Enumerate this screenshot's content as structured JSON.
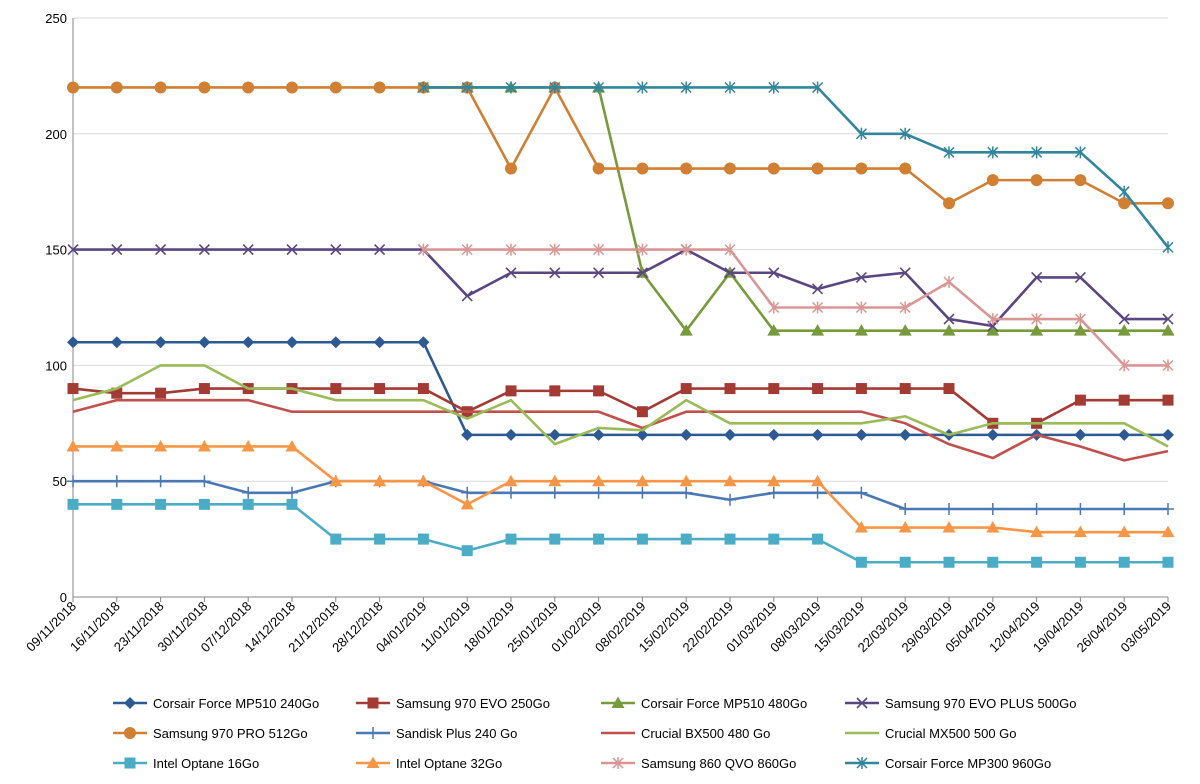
{
  "chart_data": {
    "type": "line",
    "title": "",
    "xlabel": "",
    "ylabel": "",
    "ylim": [
      0,
      250
    ],
    "yticks": [
      0,
      50,
      100,
      150,
      200,
      250
    ],
    "grid": "horizontal",
    "legend_position": "bottom",
    "x": [
      "09/11/2018",
      "16/11/2018",
      "23/11/2018",
      "30/11/2018",
      "07/12/2018",
      "14/12/2018",
      "21/12/2018",
      "28/12/2018",
      "04/01/2019",
      "11/01/2019",
      "18/01/2019",
      "25/01/2019",
      "01/02/2019",
      "08/02/2019",
      "15/02/2019",
      "22/02/2019",
      "01/03/2019",
      "08/03/2019",
      "15/03/2019",
      "22/03/2019",
      "29/03/2019",
      "05/04/2019",
      "12/04/2019",
      "19/04/2019",
      "26/04/2019",
      "03/05/2019"
    ],
    "series": [
      {
        "name": "Corsair Force MP510 240Go",
        "color": "#2e5a94",
        "marker": "diamond",
        "values": [
          110,
          110,
          110,
          110,
          110,
          110,
          110,
          110,
          110,
          70,
          70,
          70,
          70,
          70,
          70,
          70,
          70,
          70,
          70,
          70,
          70,
          70,
          70,
          70,
          70,
          70
        ]
      },
      {
        "name": "Samsung 970 EVO 250Go",
        "color": "#a33a34",
        "marker": "square",
        "values": [
          90,
          88,
          88,
          90,
          90,
          90,
          90,
          90,
          90,
          80,
          89,
          89,
          89,
          80,
          90,
          90,
          90,
          90,
          90,
          90,
          90,
          75,
          75,
          85,
          85,
          85
        ]
      },
      {
        "name": "Corsair Force MP510 480Go",
        "color": "#779a3c",
        "marker": "triangle",
        "values": [
          null,
          null,
          null,
          null,
          null,
          null,
          null,
          null,
          220,
          220,
          220,
          220,
          220,
          140,
          115,
          140,
          115,
          115,
          115,
          115,
          115,
          115,
          115,
          115,
          115,
          115
        ]
      },
      {
        "name": "Samsung 970 EVO PLUS 500Go",
        "color": "#5b4682",
        "marker": "x",
        "values": [
          150,
          150,
          150,
          150,
          150,
          150,
          150,
          150,
          150,
          130,
          140,
          140,
          140,
          140,
          150,
          140,
          140,
          133,
          138,
          140,
          120,
          117,
          138,
          138,
          120,
          120
        ]
      },
      {
        "name": "Samsung 970 PRO 512Go",
        "color": "#d07f33",
        "marker": "circle",
        "values": [
          220,
          220,
          220,
          220,
          220,
          220,
          220,
          220,
          220,
          220,
          185,
          220,
          185,
          185,
          185,
          185,
          185,
          185,
          185,
          185,
          170,
          180,
          180,
          180,
          170,
          170
        ]
      },
      {
        "name": "Sandisk Plus 240 Go",
        "color": "#4a78b4",
        "marker": "plus",
        "values": [
          50,
          50,
          50,
          50,
          45,
          45,
          50,
          50,
          50,
          45,
          45,
          45,
          45,
          45,
          45,
          42,
          45,
          45,
          45,
          38,
          38,
          38,
          38,
          38,
          38,
          38
        ]
      },
      {
        "name": "Crucial BX500 480 Go",
        "color": "#c0504d",
        "marker": "none",
        "values": [
          80,
          85,
          85,
          85,
          85,
          80,
          80,
          80,
          80,
          80,
          80,
          80,
          80,
          73,
          80,
          80,
          80,
          80,
          80,
          75,
          66,
          60,
          70,
          65,
          59,
          63
        ]
      },
      {
        "name": "Crucial MX500 500 Go",
        "color": "#9bbb59",
        "marker": "none",
        "values": [
          85,
          90,
          100,
          100,
          90,
          90,
          85,
          85,
          85,
          77,
          85,
          66,
          73,
          72,
          85,
          75,
          75,
          75,
          75,
          78,
          70,
          75,
          75,
          75,
          75,
          65
        ]
      },
      {
        "name": "Intel Optane 16Go",
        "color": "#4bacc6",
        "marker": "square",
        "values": [
          40,
          40,
          40,
          40,
          40,
          40,
          25,
          25,
          25,
          20,
          25,
          25,
          25,
          25,
          25,
          25,
          25,
          25,
          15,
          15,
          15,
          15,
          15,
          15,
          15,
          15
        ]
      },
      {
        "name": "Intel Optane 32Go",
        "color": "#f79646",
        "marker": "triangle",
        "values": [
          65,
          65,
          65,
          65,
          65,
          65,
          50,
          50,
          50,
          40,
          50,
          50,
          50,
          50,
          50,
          50,
          50,
          50,
          30,
          30,
          30,
          30,
          28,
          28,
          28,
          28
        ]
      },
      {
        "name": "Samsung 860 QVO 860Go",
        "color": "#d99694",
        "marker": "asterisk",
        "values": [
          null,
          null,
          null,
          null,
          null,
          null,
          null,
          null,
          150,
          150,
          150,
          150,
          150,
          150,
          150,
          150,
          125,
          125,
          125,
          125,
          136,
          120,
          120,
          120,
          100,
          100
        ]
      },
      {
        "name": "Corsair Force MP300 960Go",
        "color": "#31859c",
        "marker": "asterisk",
        "values": [
          null,
          null,
          null,
          null,
          null,
          null,
          null,
          null,
          220,
          220,
          220,
          220,
          220,
          220,
          220,
          220,
          220,
          220,
          200,
          200,
          192,
          192,
          192,
          192,
          175,
          151
        ]
      }
    ]
  }
}
